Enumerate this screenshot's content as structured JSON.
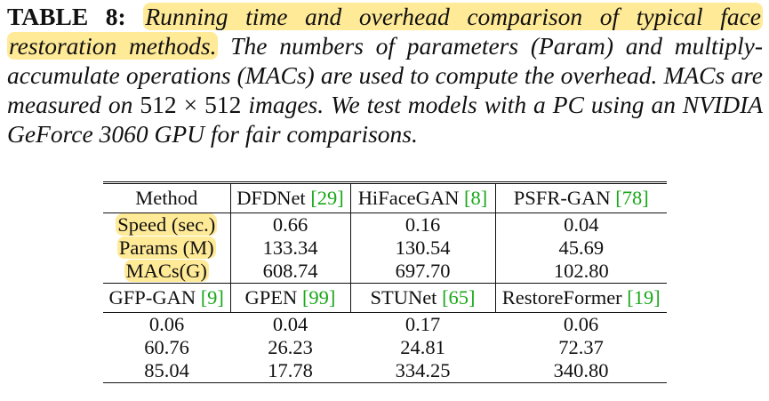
{
  "caption": {
    "label": "TABLE 8:",
    "highlighted": "Running time and overhead comparison of typical face restoration methods.",
    "text_before_math": "The numbers of parameters (Param) and multiply-accumulate operations (MACs) are used to compute the overhead. MACs are measured on",
    "math": "512 × 512",
    "text_after_math": "images. We test models with a PC using an NVIDIA GeForce 3060 GPU for fair comparisons."
  },
  "table": {
    "block1": {
      "header": [
        {
          "name": "Method"
        },
        {
          "name": "DFDNet",
          "ref": "[29]"
        },
        {
          "name": "HiFaceGAN",
          "ref": "[8]"
        },
        {
          "name": "PSFR-GAN",
          "ref": "[78]"
        }
      ],
      "rows": [
        [
          "Speed (sec.)",
          "0.66",
          "0.16",
          "0.04"
        ],
        [
          "Params (M)",
          "133.34",
          "130.54",
          "45.69"
        ],
        [
          "MACs(G)",
          "608.74",
          "697.70",
          "102.80"
        ]
      ]
    },
    "block2": {
      "header": [
        {
          "name": "GFP-GAN",
          "ref": "[9]"
        },
        {
          "name": "GPEN",
          "ref": "[99]"
        },
        {
          "name": "STUNet",
          "ref": "[65]"
        },
        {
          "name": "RestoreFormer",
          "ref": "[19]"
        }
      ],
      "rows": [
        [
          "0.06",
          "0.04",
          "0.17",
          "0.06"
        ],
        [
          "60.76",
          "26.23",
          "24.81",
          "72.37"
        ],
        [
          "85.04",
          "17.78",
          "334.25",
          "340.80"
        ]
      ]
    }
  }
}
